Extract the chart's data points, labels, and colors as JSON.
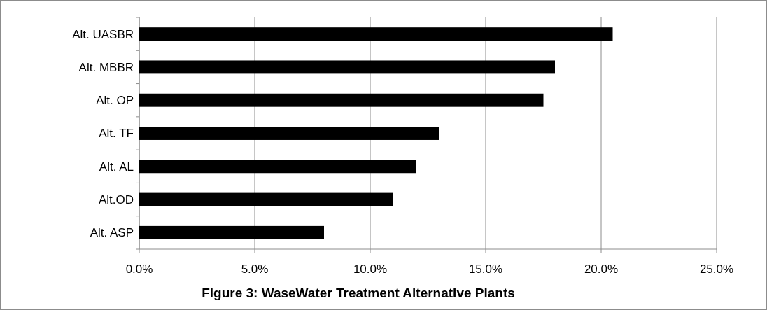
{
  "chart_data": {
    "type": "bar",
    "orientation": "horizontal",
    "title": "Figure 3: WaseWater Treatment Alternative Plants",
    "categories": [
      "Alt. UASBR",
      "Alt. MBBR",
      "Alt. OP",
      "Alt. TF",
      "Alt. AL",
      "Alt.OD",
      "Alt. ASP"
    ],
    "values": [
      20.5,
      18.0,
      17.5,
      13.0,
      12.0,
      11.0,
      8.0
    ],
    "color": "#000000",
    "xlim": [
      0,
      25
    ],
    "xticks": [
      {
        "value": 0,
        "label": "0.0%"
      },
      {
        "value": 5,
        "label": "5.0%"
      },
      {
        "value": 10,
        "label": "10.0%"
      },
      {
        "value": 15,
        "label": "15.0%"
      },
      {
        "value": 20,
        "label": "20.0%"
      },
      {
        "value": 25,
        "label": "25.0%"
      }
    ],
    "grid": "x"
  }
}
